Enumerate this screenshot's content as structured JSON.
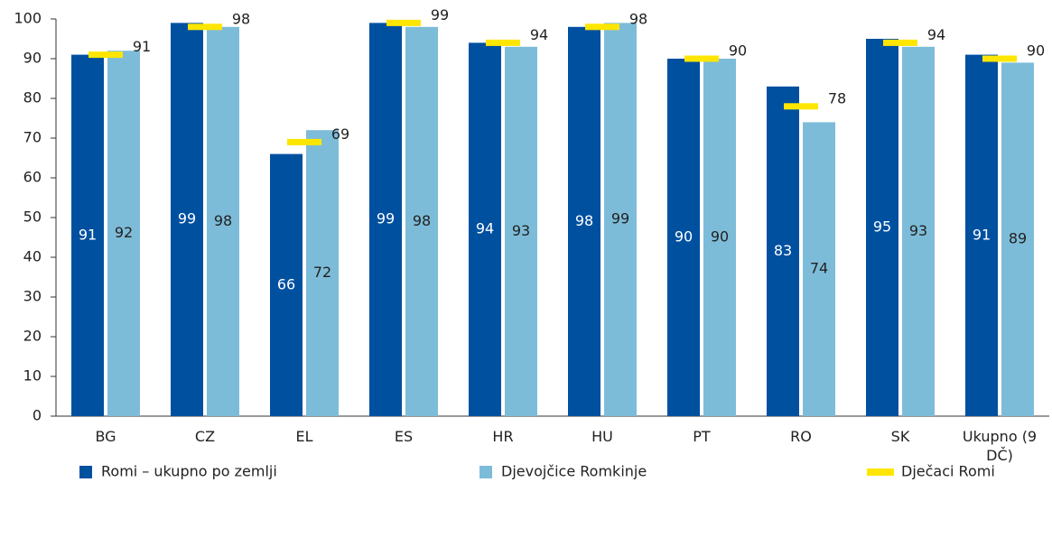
{
  "chart_data": {
    "type": "bar",
    "categories": [
      "BG",
      "CZ",
      "EL",
      "ES",
      "HR",
      "HU",
      "PT",
      "RO",
      "SK",
      "Ukupno (9 DČ)"
    ],
    "series": [
      {
        "name": "Romi – ukupno po zemlji",
        "color": "#0050a0",
        "values": [
          91,
          99,
          66,
          99,
          94,
          98,
          90,
          83,
          95,
          91
        ]
      },
      {
        "name": "Djevojčice Romkinje",
        "color": "#7dbcd9",
        "values": [
          92,
          98,
          72,
          98,
          93,
          99,
          90,
          74,
          93,
          89
        ]
      },
      {
        "name": "Dječaci Romi",
        "color": "#ffe600",
        "marker": "dash",
        "values": [
          91,
          98,
          69,
          99,
          94,
          98,
          90,
          78,
          94,
          90
        ]
      }
    ],
    "ylim": [
      0,
      100
    ],
    "yticks": [
      0,
      10,
      20,
      30,
      40,
      50,
      60,
      70,
      80,
      90,
      100
    ],
    "grid": false,
    "legend": "bottom"
  }
}
